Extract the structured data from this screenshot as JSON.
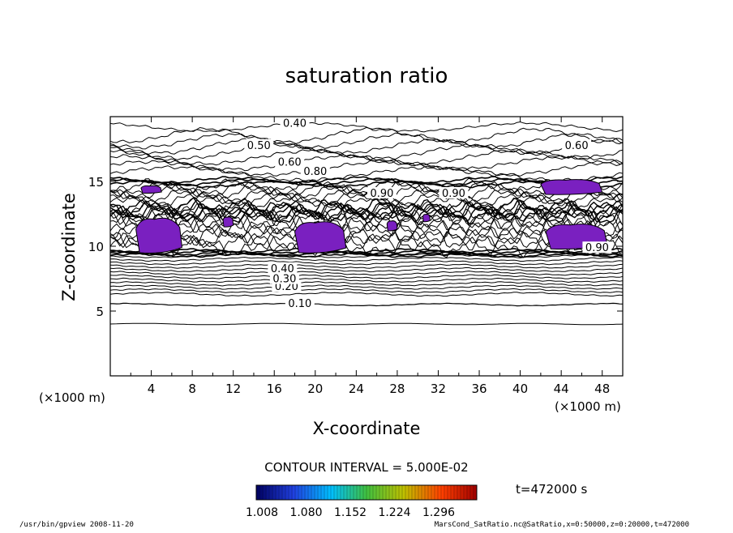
{
  "chart_data": {
    "type": "contour",
    "title": "saturation ratio",
    "xlabel": "X-coordinate",
    "ylabel": "Z-coordinate",
    "x_unit": "(×1000 m)",
    "y_unit": "(×1000 m)",
    "xlim": [
      0,
      50
    ],
    "ylim": [
      0,
      20
    ],
    "x_ticks": [
      4,
      8,
      12,
      16,
      20,
      24,
      28,
      32,
      36,
      40,
      44,
      48
    ],
    "y_ticks": [
      5,
      10,
      15
    ],
    "contour_interval_text": "CONTOUR INTERVAL = 5.000E-02",
    "time_text": "t=472000 s",
    "contour_labels": [
      {
        "text": "0.10",
        "x": 18.5,
        "z": 5.5
      },
      {
        "text": "0.20",
        "x": 17.2,
        "z": 6.8
      },
      {
        "text": "0.30",
        "x": 17.0,
        "z": 7.4
      },
      {
        "text": "0.40",
        "x": 16.8,
        "z": 8.2
      },
      {
        "text": "0.40",
        "x": 18.0,
        "z": 19.4
      },
      {
        "text": "0.50",
        "x": 14.5,
        "z": 17.7
      },
      {
        "text": "0.60",
        "x": 17.5,
        "z": 16.4
      },
      {
        "text": "0.60",
        "x": 45.5,
        "z": 17.7
      },
      {
        "text": "0.80",
        "x": 20.0,
        "z": 15.7
      },
      {
        "text": "0.90",
        "x": 26.5,
        "z": 14.0
      },
      {
        "text": "0.90",
        "x": 33.5,
        "z": 14.0
      },
      {
        "text": "0.90",
        "x": 47.5,
        "z": 9.8
      }
    ],
    "shaded_regions": [
      {
        "x0": 2.5,
        "x1": 7.0,
        "z0": 9.5,
        "z1": 12.3
      },
      {
        "x0": 18.0,
        "x1": 23.0,
        "z0": 9.5,
        "z1": 12.0
      },
      {
        "x0": 42.5,
        "x1": 48.5,
        "z0": 9.8,
        "z1": 11.8
      },
      {
        "x0": 42.0,
        "x1": 48.0,
        "z0": 14.0,
        "z1": 15.2
      },
      {
        "x0": 3.0,
        "x1": 5.0,
        "z0": 14.1,
        "z1": 14.7
      },
      {
        "x0": 11.0,
        "x1": 12.0,
        "z0": 11.5,
        "z1": 12.3
      },
      {
        "x0": 27.0,
        "x1": 28.0,
        "z0": 11.2,
        "z1": 12.0
      },
      {
        "x0": 30.5,
        "x1": 31.2,
        "z0": 11.9,
        "z1": 12.5
      }
    ],
    "colorbar": {
      "ticks": [
        "1.008",
        "1.080",
        "1.152",
        "1.224",
        "1.296"
      ],
      "colors": [
        "#000060",
        "#2040e0",
        "#00c0ff",
        "#40c040",
        "#c0c000",
        "#ff4000",
        "#a00000"
      ]
    },
    "fill_color": "#7a20c0"
  },
  "footer": {
    "left": "/usr/bin/gpview   2008-11-20",
    "right": "MarsCond_SatRatio.nc@SatRatio,x=0:50000,z=0:20000,t=472000"
  }
}
